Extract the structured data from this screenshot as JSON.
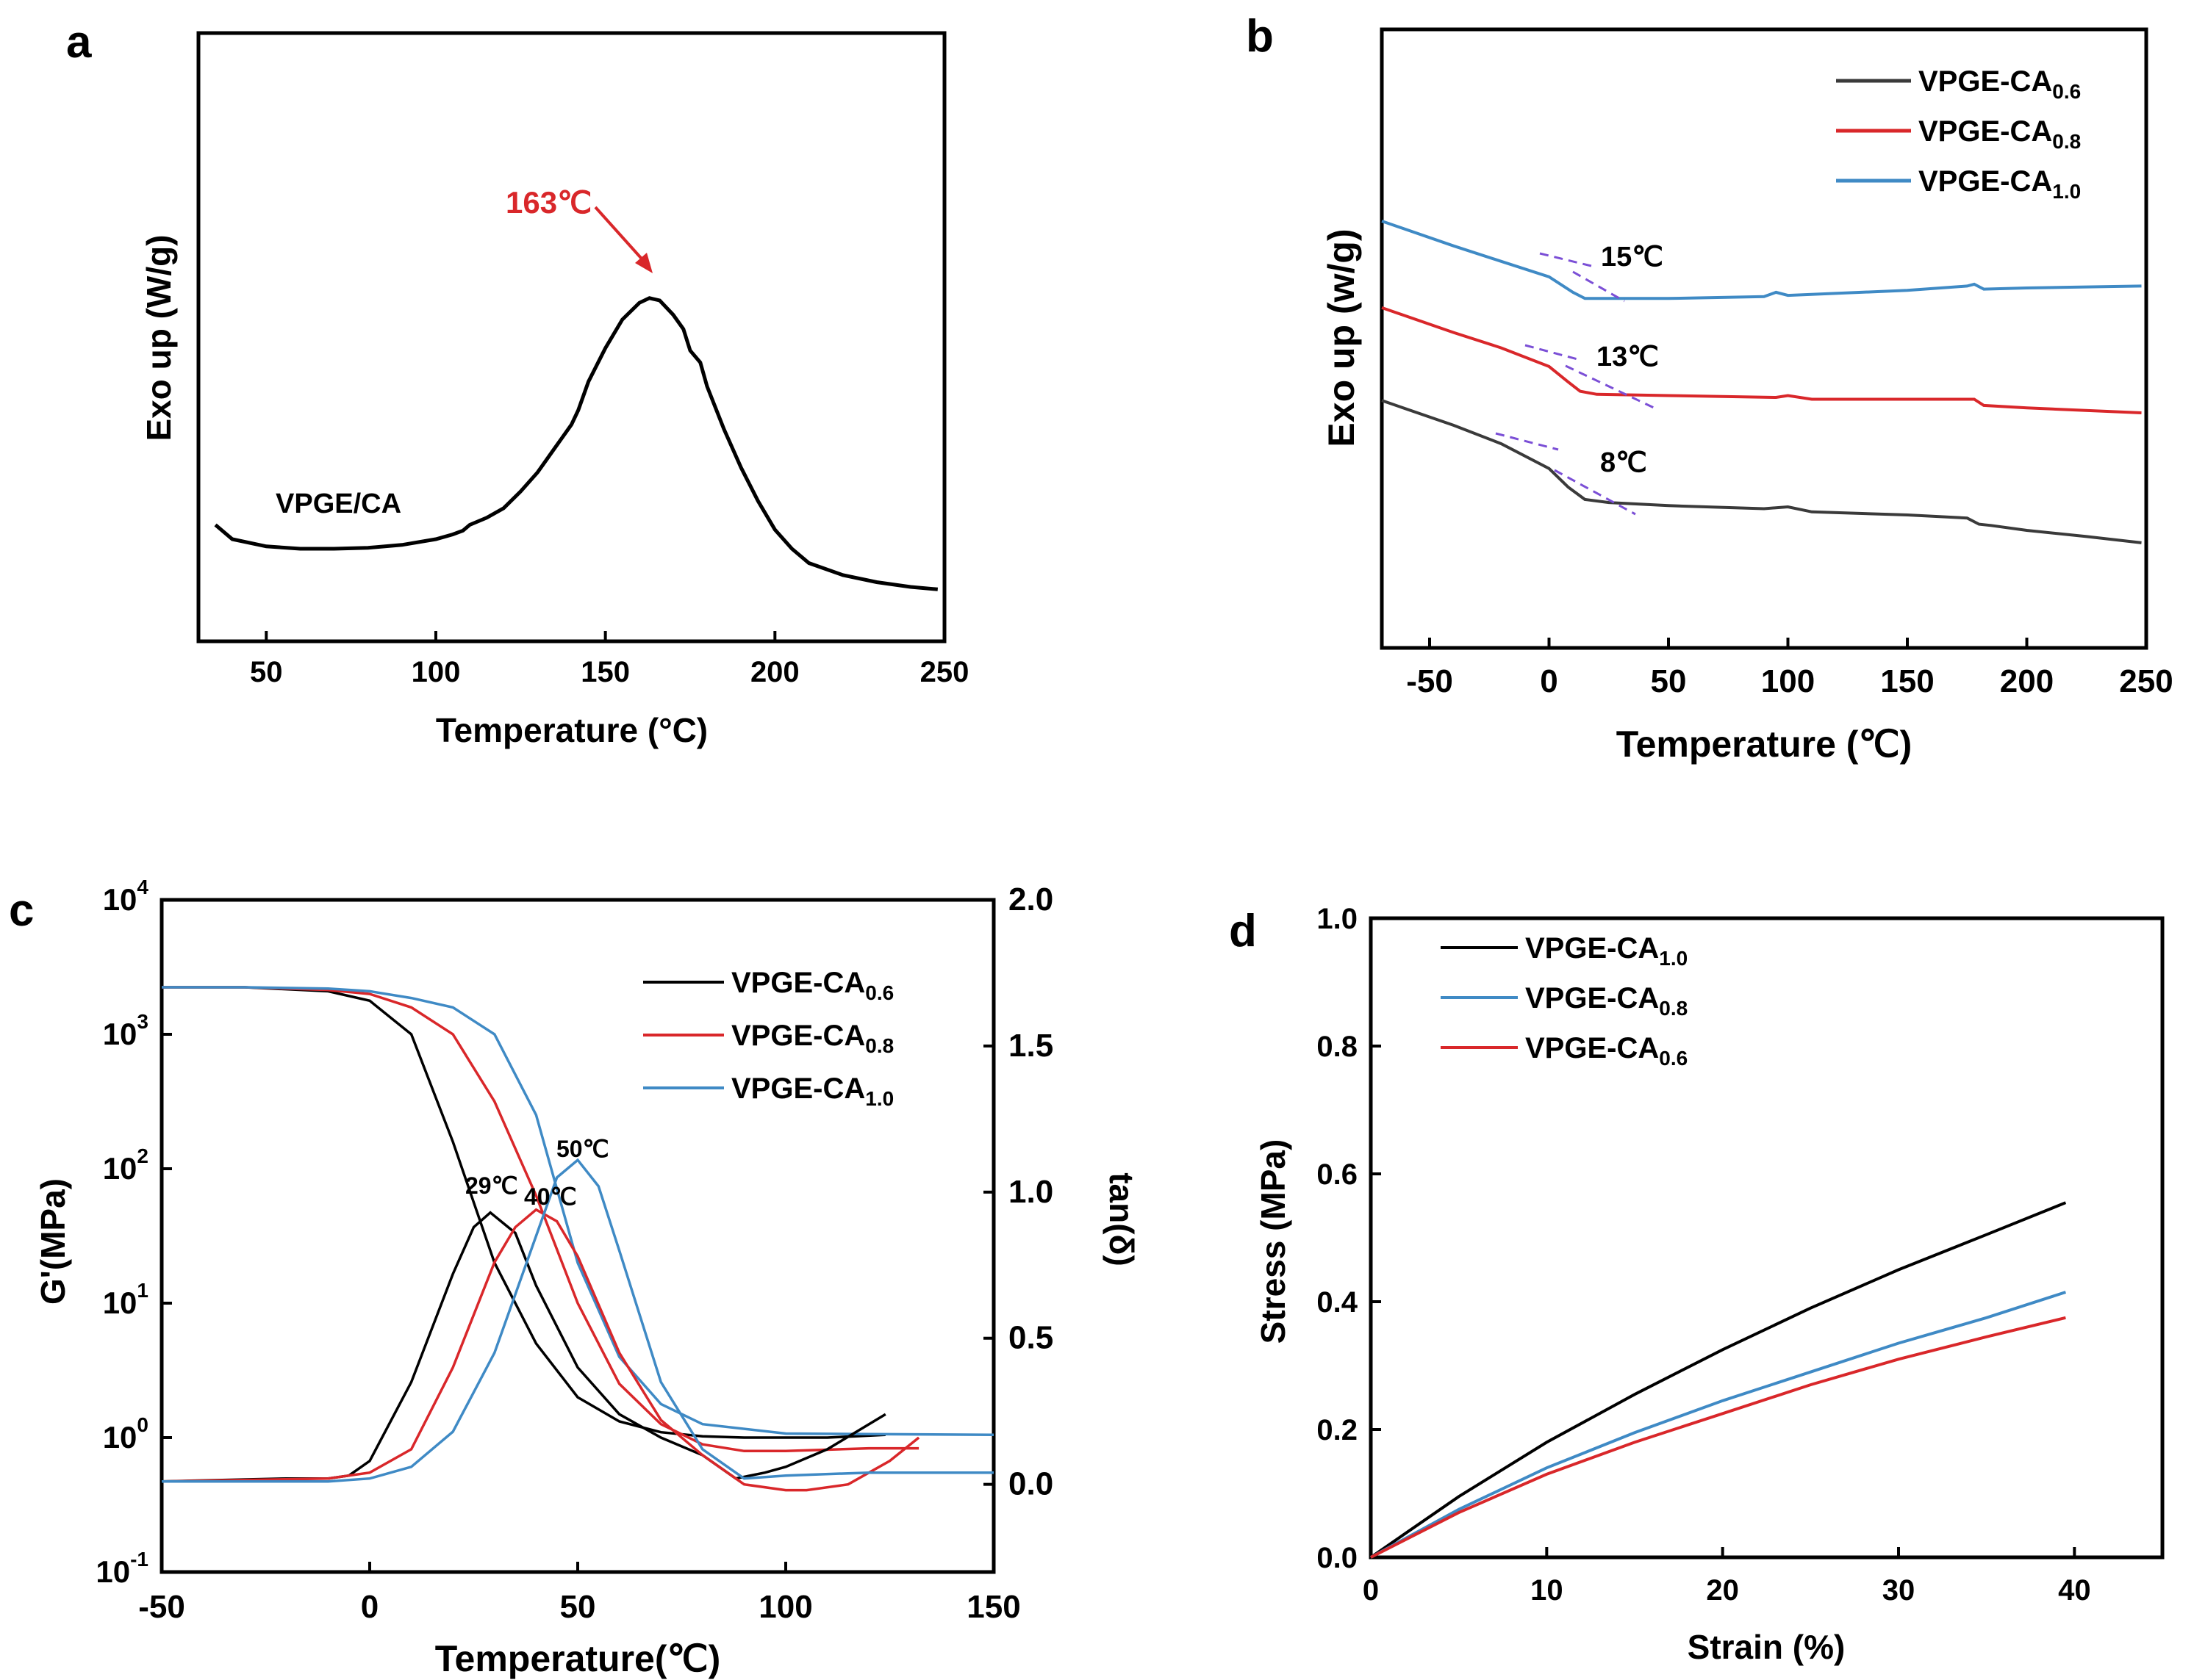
{
  "chart_data": [
    {
      "panel": "a",
      "type": "line",
      "xlabel": "Temperature (°C)",
      "ylabel": "Exo up (W/g)",
      "xlim": [
        30,
        250
      ],
      "ylim": [
        0,
        1
      ],
      "xticks": [
        50,
        100,
        150,
        200,
        250
      ],
      "annotation": {
        "text": "163℃",
        "x": 163,
        "color": "#d9272a"
      },
      "series": [
        {
          "name": "VPGE/CA",
          "color": "#000000",
          "x": [
            35,
            40,
            50,
            60,
            70,
            80,
            90,
            100,
            105,
            108,
            110,
            115,
            120,
            125,
            130,
            135,
            140,
            142,
            145,
            150,
            155,
            160,
            163,
            166,
            170,
            173,
            175,
            178,
            180,
            185,
            190,
            195,
            200,
            205,
            210,
            220,
            230,
            240,
            248
          ],
          "y": [
            0.19,
            0.16,
            0.145,
            0.14,
            0.14,
            0.142,
            0.148,
            0.16,
            0.17,
            0.178,
            0.19,
            0.205,
            0.225,
            0.26,
            0.3,
            0.35,
            0.4,
            0.43,
            0.49,
            0.56,
            0.62,
            0.655,
            0.665,
            0.66,
            0.63,
            0.6,
            0.555,
            0.53,
            0.48,
            0.39,
            0.31,
            0.24,
            0.18,
            0.14,
            0.11,
            0.085,
            0.07,
            0.06,
            0.055
          ]
        }
      ]
    },
    {
      "panel": "b",
      "type": "line",
      "xlabel": "Temperature (℃)",
      "ylabel": "Exo up (w/g)",
      "xlim": [
        -70,
        250
      ],
      "ylim": [
        0,
        1
      ],
      "xticks": [
        -50,
        0,
        50,
        100,
        150,
        200,
        250
      ],
      "legend": [
        "VPGE-CA",
        "VPGE-CA",
        "VPGE-CA"
      ],
      "legend_subs": [
        "0.6",
        "0.8",
        "1.0"
      ],
      "annotations": [
        "15℃",
        "13℃",
        "8℃"
      ],
      "series": [
        {
          "name": "VPGE-CA0.6",
          "color": "#3a3a3a",
          "x": [
            -70,
            -40,
            -20,
            0,
            8,
            15,
            25,
            50,
            90,
            100,
            110,
            150,
            175,
            180,
            185,
            200,
            225,
            248
          ],
          "y": [
            0.4,
            0.36,
            0.33,
            0.29,
            0.26,
            0.24,
            0.235,
            0.23,
            0.225,
            0.228,
            0.22,
            0.215,
            0.21,
            0.2,
            0.198,
            0.19,
            0.18,
            0.17
          ]
        },
        {
          "name": "VPGE-CA0.8",
          "color": "#d9272a",
          "x": [
            -70,
            -40,
            -20,
            0,
            8,
            13,
            20,
            50,
            95,
            100,
            110,
            150,
            178,
            182,
            200,
            248
          ],
          "y": [
            0.55,
            0.51,
            0.485,
            0.455,
            0.43,
            0.415,
            0.41,
            0.408,
            0.405,
            0.408,
            0.402,
            0.402,
            0.402,
            0.392,
            0.388,
            0.38
          ]
        },
        {
          "name": "VPGE-CA1.0",
          "color": "#3f8ac5",
          "x": [
            -70,
            -40,
            -20,
            0,
            10,
            15,
            25,
            50,
            90,
            95,
            100,
            150,
            175,
            178,
            182,
            200,
            248
          ],
          "y": [
            0.69,
            0.65,
            0.625,
            0.6,
            0.575,
            0.565,
            0.565,
            0.565,
            0.568,
            0.575,
            0.57,
            0.578,
            0.585,
            0.588,
            0.58,
            0.582,
            0.585
          ]
        }
      ]
    },
    {
      "panel": "c",
      "type": "line",
      "xlabel": "Temperature(℃)",
      "ylabel_left": "G'(MPa)",
      "ylabel_right": "tan(δ)",
      "xlim": [
        -50,
        150
      ],
      "ylim_left_log10": [
        -1,
        4
      ],
      "ylim_right": [
        -0.3,
        2.0
      ],
      "xticks": [
        -50,
        0,
        50,
        100,
        150
      ],
      "yticks_right": [
        "0.0",
        "0.5",
        "1.0",
        "1.5",
        "2.0"
      ],
      "yticks_left_exp": [
        "-1",
        "0",
        "1",
        "2",
        "3",
        "4"
      ],
      "legend": [
        "VPGE-CA",
        "VPGE-CA",
        "VPGE-CA"
      ],
      "legend_subs": [
        "0.6",
        "0.8",
        "1.0"
      ],
      "annotations": [
        "29℃",
        "40℃",
        "50℃"
      ],
      "modulus_series": [
        {
          "name": "VPGE-CA0.6",
          "color": "#000000",
          "x": [
            -50,
            -30,
            -10,
            0,
            10,
            20,
            30,
            40,
            50,
            60,
            70,
            80,
            90,
            100,
            110,
            124
          ],
          "logy": [
            3.35,
            3.35,
            3.32,
            3.25,
            3.0,
            2.2,
            1.3,
            0.7,
            0.3,
            0.12,
            0.04,
            0.01,
            0.0,
            0.0,
            0.0,
            0.02
          ]
        },
        {
          "name": "VPGE-CA0.8",
          "color": "#d9272a",
          "x": [
            -50,
            -30,
            -10,
            0,
            10,
            20,
            30,
            40,
            50,
            60,
            70,
            80,
            90,
            100,
            120,
            132
          ],
          "logy": [
            3.35,
            3.35,
            3.33,
            3.3,
            3.2,
            3.0,
            2.5,
            1.8,
            1.0,
            0.4,
            0.1,
            -0.05,
            -0.1,
            -0.1,
            -0.08,
            -0.08
          ]
        },
        {
          "name": "VPGE-CA1.0",
          "color": "#3f8ac5",
          "x": [
            -50,
            -30,
            -10,
            0,
            10,
            20,
            30,
            40,
            50,
            60,
            70,
            80,
            100,
            150
          ],
          "logy": [
            3.35,
            3.35,
            3.34,
            3.32,
            3.27,
            3.2,
            3.0,
            2.4,
            1.3,
            0.6,
            0.25,
            0.1,
            0.03,
            0.02
          ]
        }
      ],
      "tan_series": [
        {
          "name": "VPGE-CA0.6",
          "color": "#000000",
          "x": [
            -50,
            -20,
            -10,
            -5,
            0,
            10,
            20,
            25,
            29,
            35,
            40,
            50,
            60,
            70,
            80,
            88,
            95,
            100,
            110,
            124
          ],
          "y": [
            0.01,
            0.02,
            0.02,
            0.03,
            0.08,
            0.35,
            0.72,
            0.88,
            0.93,
            0.86,
            0.68,
            0.4,
            0.24,
            0.16,
            0.1,
            0.02,
            0.04,
            0.06,
            0.12,
            0.24
          ]
        },
        {
          "name": "VPGE-CA0.8",
          "color": "#d9272a",
          "x": [
            -50,
            -10,
            0,
            10,
            20,
            30,
            35,
            40,
            45,
            50,
            60,
            70,
            80,
            90,
            100,
            105,
            115,
            125,
            132
          ],
          "y": [
            0.01,
            0.02,
            0.04,
            0.12,
            0.4,
            0.76,
            0.88,
            0.94,
            0.9,
            0.78,
            0.45,
            0.22,
            0.1,
            0.0,
            -0.02,
            -0.02,
            0.0,
            0.08,
            0.16
          ]
        },
        {
          "name": "VPGE-CA1.0",
          "color": "#3f8ac5",
          "x": [
            -50,
            -10,
            0,
            10,
            20,
            30,
            40,
            45,
            50,
            55,
            60,
            70,
            80,
            90,
            100,
            120,
            150
          ],
          "y": [
            0.01,
            0.01,
            0.02,
            0.06,
            0.18,
            0.45,
            0.85,
            1.05,
            1.11,
            1.02,
            0.8,
            0.35,
            0.12,
            0.02,
            0.03,
            0.04,
            0.04
          ]
        }
      ]
    },
    {
      "panel": "d",
      "type": "line",
      "xlabel": "Strain (%)",
      "ylabel": "Stress (MPa)",
      "xlim": [
        0,
        45
      ],
      "ylim": [
        0,
        1.0
      ],
      "xticks": [
        0,
        10,
        20,
        30,
        40
      ],
      "yticks": [
        "0.0",
        "0.2",
        "0.4",
        "0.6",
        "0.8",
        "1.0"
      ],
      "legend": [
        "VPGE-CA",
        "VPGE-CA",
        "VPGE-CA"
      ],
      "legend_subs": [
        "1.0",
        "0.8",
        "0.6"
      ],
      "series": [
        {
          "name": "VPGE-CA1.0",
          "color": "#000000",
          "x": [
            0,
            5,
            10,
            15,
            20,
            25,
            30,
            35,
            39.5
          ],
          "y": [
            0,
            0.095,
            0.18,
            0.255,
            0.325,
            0.39,
            0.45,
            0.505,
            0.555
          ]
        },
        {
          "name": "VPGE-CA0.8",
          "color": "#3f8ac5",
          "x": [
            0,
            5,
            10,
            15,
            20,
            25,
            30,
            35,
            39.5
          ],
          "y": [
            0,
            0.075,
            0.14,
            0.195,
            0.245,
            0.29,
            0.335,
            0.375,
            0.415
          ]
        },
        {
          "name": "VPGE-CA0.6",
          "color": "#d9272a",
          "x": [
            0,
            5,
            10,
            15,
            20,
            25,
            30,
            35,
            39.5
          ],
          "y": [
            0,
            0.07,
            0.13,
            0.18,
            0.225,
            0.27,
            0.31,
            0.345,
            0.375
          ]
        }
      ]
    }
  ]
}
